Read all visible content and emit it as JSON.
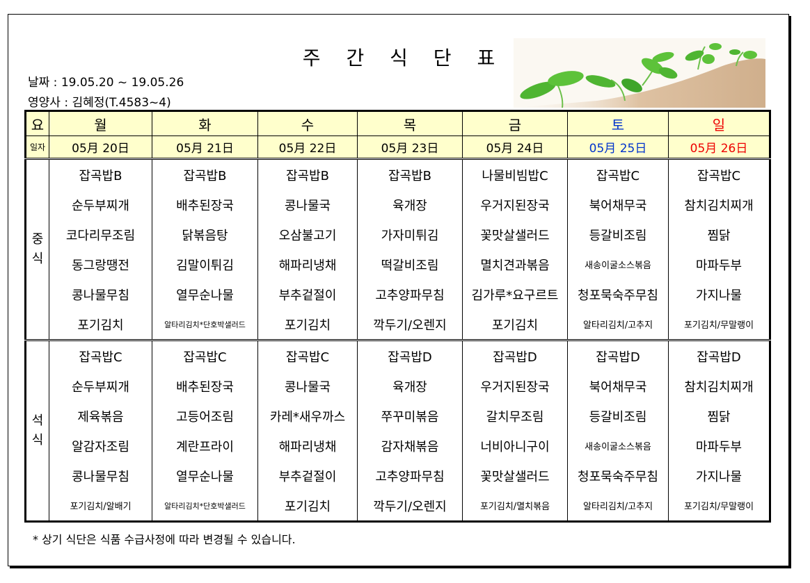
{
  "header": {
    "title": "주 간 식 단 표",
    "date_label": "날짜 : 19.05.20 ~ 19.05.26",
    "dietitian_label": "영양사 : 김혜정(T.4583~4)",
    "decoration": "sprouts-illustration"
  },
  "table": {
    "row_label_day": "요",
    "row_label_date": "일자",
    "days": [
      {
        "day": "월",
        "date": "05月 20日",
        "color": "#000000"
      },
      {
        "day": "화",
        "date": "05月 21日",
        "color": "#000000"
      },
      {
        "day": "수",
        "date": "05月 22日",
        "color": "#000000"
      },
      {
        "day": "목",
        "date": "05月 23日",
        "color": "#000000"
      },
      {
        "day": "금",
        "date": "05月 24日",
        "color": "#000000"
      },
      {
        "day": "토",
        "date": "05月 25日",
        "color": "#0033cc"
      },
      {
        "day": "일",
        "date": "05月 26日",
        "color": "#ee0000"
      }
    ],
    "meals": [
      {
        "label": "중식",
        "rows": [
          [
            "잡곡밥B",
            "잡곡밥B",
            "잡곡밥B",
            "잡곡밥B",
            "나물비빔밥C",
            "잡곡밥C",
            "잡곡밥C"
          ],
          [
            "순두부찌개",
            "배추된장국",
            "콩나물국",
            "육개장",
            "우거지된장국",
            "북어채무국",
            "참치김치찌개"
          ],
          [
            "코다리무조림",
            "닭볶음탕",
            "오삼불고기",
            "가자미튀김",
            "꽃맛살샐러드",
            "등갈비조림",
            "찜닭"
          ],
          [
            "동그랑땡전",
            "김말이튀김",
            "해파리냉채",
            "떡갈비조림",
            "멸치견과볶음",
            "새송이굴소스볶음",
            "마파두부"
          ],
          [
            "콩나물무침",
            "열무순나물",
            "부추겉절이",
            "고추양파무침",
            "김가루*요구르트",
            "청포묵숙주무침",
            "가지나물"
          ],
          [
            "포기김치",
            "알타리김치*단호박샐러드",
            "포기김치",
            "깍두기/오렌지",
            "포기김치",
            "알타리김치/고추지",
            "포기김치/무말랭이"
          ]
        ]
      },
      {
        "label": "석식",
        "rows": [
          [
            "잡곡밥C",
            "잡곡밥C",
            "잡곡밥C",
            "잡곡밥D",
            "잡곡밥D",
            "잡곡밥D",
            "잡곡밥D"
          ],
          [
            "순두부찌개",
            "배추된장국",
            "콩나물국",
            "육개장",
            "우거지된장국",
            "북어채무국",
            "참치김치찌개"
          ],
          [
            "제육볶음",
            "고등어조림",
            "카레*새우까스",
            "쭈꾸미볶음",
            "갈치무조림",
            "등갈비조림",
            "찜닭"
          ],
          [
            "알감자조림",
            "계란프라이",
            "해파리냉채",
            "감자채볶음",
            "너비아니구이",
            "새송이굴소스볶음",
            "마파두부"
          ],
          [
            "콩나물무침",
            "열무순나물",
            "부추겉절이",
            "고추양파무침",
            "꽃맛살샐러드",
            "청포묵숙주무침",
            "가지나물"
          ],
          [
            "포기김치/알배기",
            "알타리김치*단호박샐러드",
            "포기김치",
            "깍두기/오렌지",
            "포기김치/멸치볶음",
            "알타리김치/고추지",
            "포기김치/무말랭이"
          ]
        ]
      }
    ]
  },
  "footer": {
    "note": "* 상기 식단은 식품 수급사정에 따라 변경될 수 있습니다."
  }
}
